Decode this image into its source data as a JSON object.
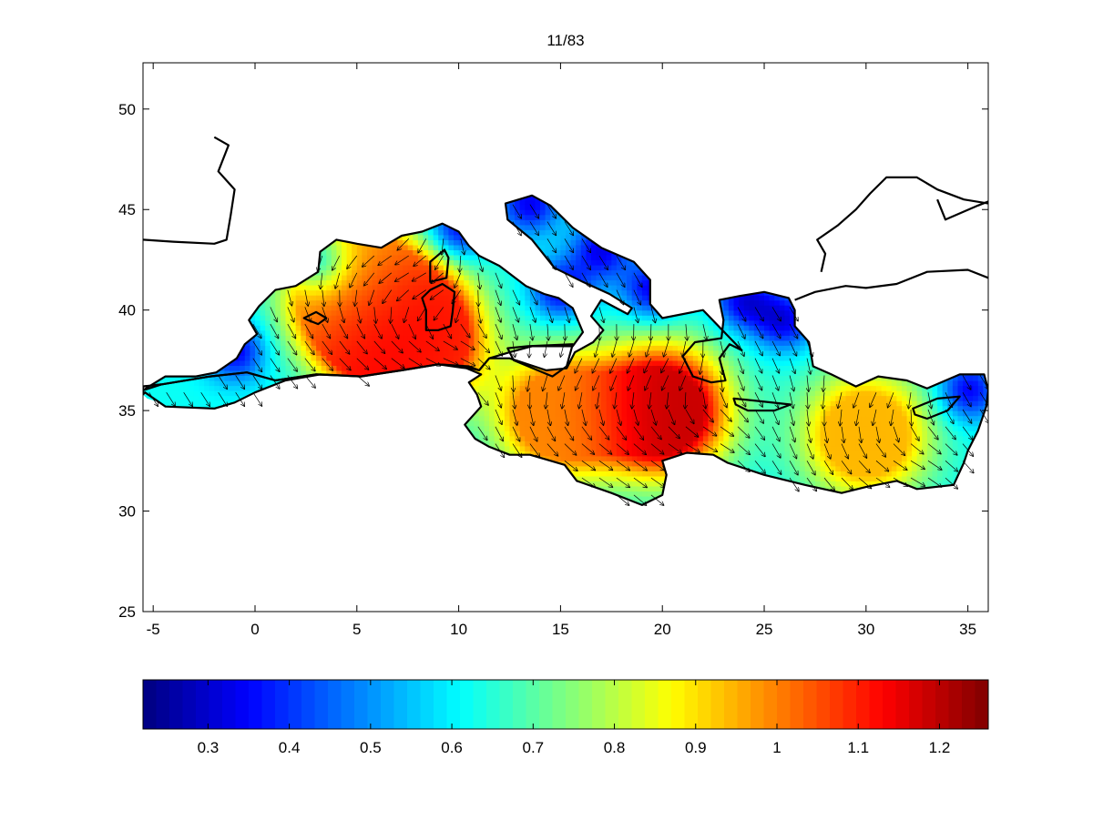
{
  "chart_data": [
    {
      "type": "heatmap",
      "title": "11/83",
      "xlabel": "",
      "ylabel": "",
      "xlim": [
        -5.5,
        36
      ],
      "ylim": [
        25,
        52.3
      ],
      "x_ticks": [
        "-5",
        "0",
        "5",
        "10",
        "15",
        "20",
        "25",
        "30",
        "35"
      ],
      "y_ticks": [
        "25",
        "30",
        "35",
        "40",
        "45",
        "50"
      ],
      "colormap": "jet",
      "overlay": "velocity arrows (quiver) and coastline",
      "hotspots": [
        {
          "lon": 6.0,
          "lat": 39.6,
          "value": 1.2
        },
        {
          "lon": 8.0,
          "lat": 38.6,
          "value": 1.1
        },
        {
          "lon": 20.0,
          "lat": 35.0,
          "value": 1.2
        },
        {
          "lon": 15.0,
          "lat": 34.8,
          "value": 1.0
        },
        {
          "lon": 30.0,
          "lat": 33.8,
          "value": 0.95
        },
        {
          "lon": 4.5,
          "lat": 41.5,
          "value": 0.9
        }
      ],
      "grid": false
    },
    {
      "type": "colorbar",
      "clim": [
        0.22,
        1.26
      ],
      "ticks": [
        "0.3",
        "0.4",
        "0.5",
        "0.6",
        "0.7",
        "0.8",
        "0.9",
        "1",
        "1.1",
        "1.2"
      ],
      "colormap": "jet"
    }
  ]
}
